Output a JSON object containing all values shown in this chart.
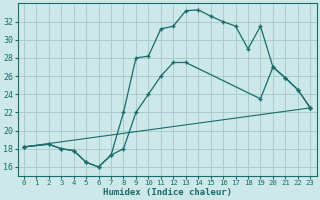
{
  "xlabel": "Humidex (Indice chaleur)",
  "bg_color": "#cde8e8",
  "grid_color": "#a8cccc",
  "line_color": "#1a6b6b",
  "xlim": [
    -0.5,
    23.5
  ],
  "ylim": [
    15,
    34
  ],
  "yticks": [
    16,
    18,
    20,
    22,
    24,
    26,
    28,
    30,
    32
  ],
  "xticks": [
    0,
    1,
    2,
    3,
    4,
    5,
    6,
    7,
    8,
    9,
    10,
    11,
    12,
    13,
    14,
    15,
    16,
    17,
    18,
    19,
    20,
    21,
    22,
    23
  ],
  "line1_x": [
    0,
    2,
    3,
    4,
    5,
    6,
    7,
    8,
    9,
    10,
    11,
    12,
    13,
    14,
    15,
    16,
    17,
    18,
    19,
    20,
    21,
    22,
    23
  ],
  "line1_y": [
    18.2,
    18.5,
    18.0,
    17.8,
    16.5,
    16.0,
    17.3,
    22.0,
    28.0,
    28.2,
    31.2,
    31.5,
    33.2,
    33.3,
    32.6,
    32.0,
    31.5,
    29.0,
    31.5,
    27.0,
    25.8,
    24.5,
    22.5
  ],
  "line2_x": [
    0,
    2,
    3,
    4,
    5,
    6,
    7,
    8,
    9,
    10,
    11,
    12,
    13,
    19,
    20,
    21,
    22,
    23
  ],
  "line2_y": [
    18.2,
    18.5,
    18.0,
    17.8,
    16.5,
    16.0,
    17.3,
    18.0,
    22.0,
    24.0,
    26.0,
    27.5,
    27.5,
    23.5,
    27.0,
    25.8,
    24.5,
    22.5
  ],
  "line3_x": [
    0,
    23
  ],
  "line3_y": [
    18.2,
    22.5
  ]
}
